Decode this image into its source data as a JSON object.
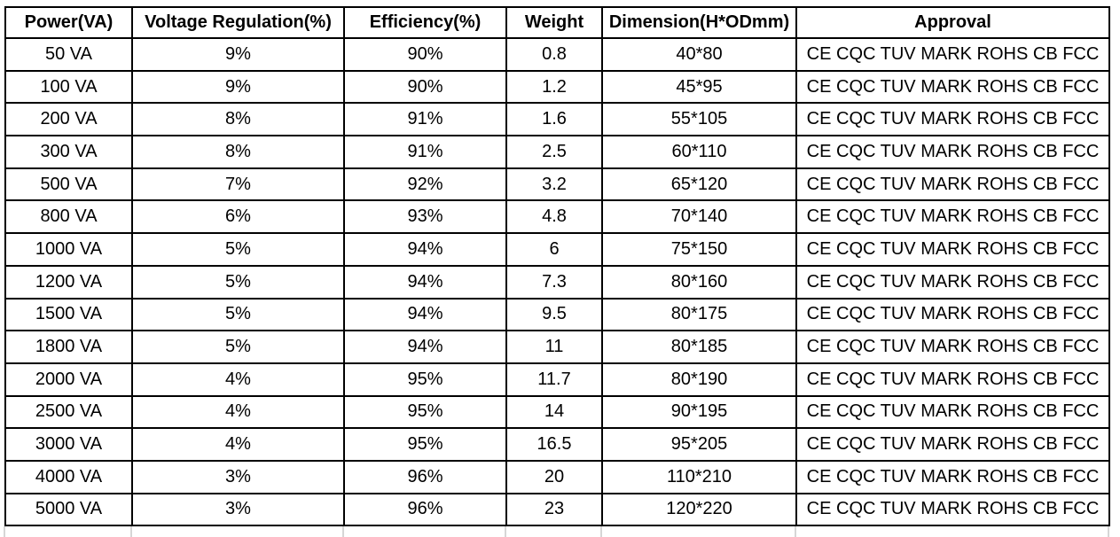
{
  "chart_data": {
    "type": "table",
    "columns": [
      "Power(VA)",
      "Voltage Regulation(%)",
      "Efficiency(%)",
      "Weight",
      "Dimension(H*ODmm)",
      "Approval"
    ],
    "rows": [
      [
        "50 VA",
        "9%",
        "90%",
        "0.8",
        "40*80",
        "CE CQC TUV MARK ROHS CB FCC"
      ],
      [
        "100 VA",
        "9%",
        "90%",
        "1.2",
        "45*95",
        "CE CQC TUV MARK ROHS CB FCC"
      ],
      [
        "200 VA",
        "8%",
        "91%",
        "1.6",
        "55*105",
        "CE CQC TUV MARK ROHS CB FCC"
      ],
      [
        "300 VA",
        "8%",
        "91%",
        "2.5",
        "60*110",
        "CE CQC TUV MARK ROHS CB FCC"
      ],
      [
        "500 VA",
        "7%",
        "92%",
        "3.2",
        "65*120",
        "CE CQC TUV MARK ROHS CB FCC"
      ],
      [
        "800 VA",
        "6%",
        "93%",
        "4.8",
        "70*140",
        "CE CQC TUV MARK ROHS CB FCC"
      ],
      [
        "1000 VA",
        "5%",
        "94%",
        "6",
        "75*150",
        "CE CQC TUV MARK ROHS CB FCC"
      ],
      [
        "1200 VA",
        "5%",
        "94%",
        "7.3",
        "80*160",
        "CE CQC TUV MARK ROHS CB FCC"
      ],
      [
        "1500 VA",
        "5%",
        "94%",
        "9.5",
        "80*175",
        "CE CQC TUV MARK ROHS CB FCC"
      ],
      [
        "1800 VA",
        "5%",
        "94%",
        "11",
        "80*185",
        "CE CQC TUV MARK ROHS CB FCC"
      ],
      [
        "2000 VA",
        "4%",
        "95%",
        "11.7",
        "80*190",
        "CE CQC TUV MARK ROHS CB FCC"
      ],
      [
        "2500 VA",
        "4%",
        "95%",
        "14",
        "90*195",
        "CE CQC TUV MARK ROHS CB FCC"
      ],
      [
        "3000 VA",
        "4%",
        "95%",
        "16.5",
        "95*205",
        "CE CQC TUV MARK ROHS CB FCC"
      ],
      [
        "4000 VA",
        "3%",
        "96%",
        "20",
        "110*210",
        "CE CQC TUV MARK ROHS CB FCC"
      ],
      [
        "5000 VA",
        "3%",
        "96%",
        "23",
        "120*220",
        "CE CQC TUV MARK ROHS CB FCC"
      ]
    ],
    "layout_hints": {
      "grid": "on",
      "header_bold": true,
      "all_cells_centered": true
    }
  },
  "colors": {
    "border": "#000000",
    "text": "#000000",
    "background": "#ffffff",
    "partial_gridline": "#d6d6d6"
  }
}
